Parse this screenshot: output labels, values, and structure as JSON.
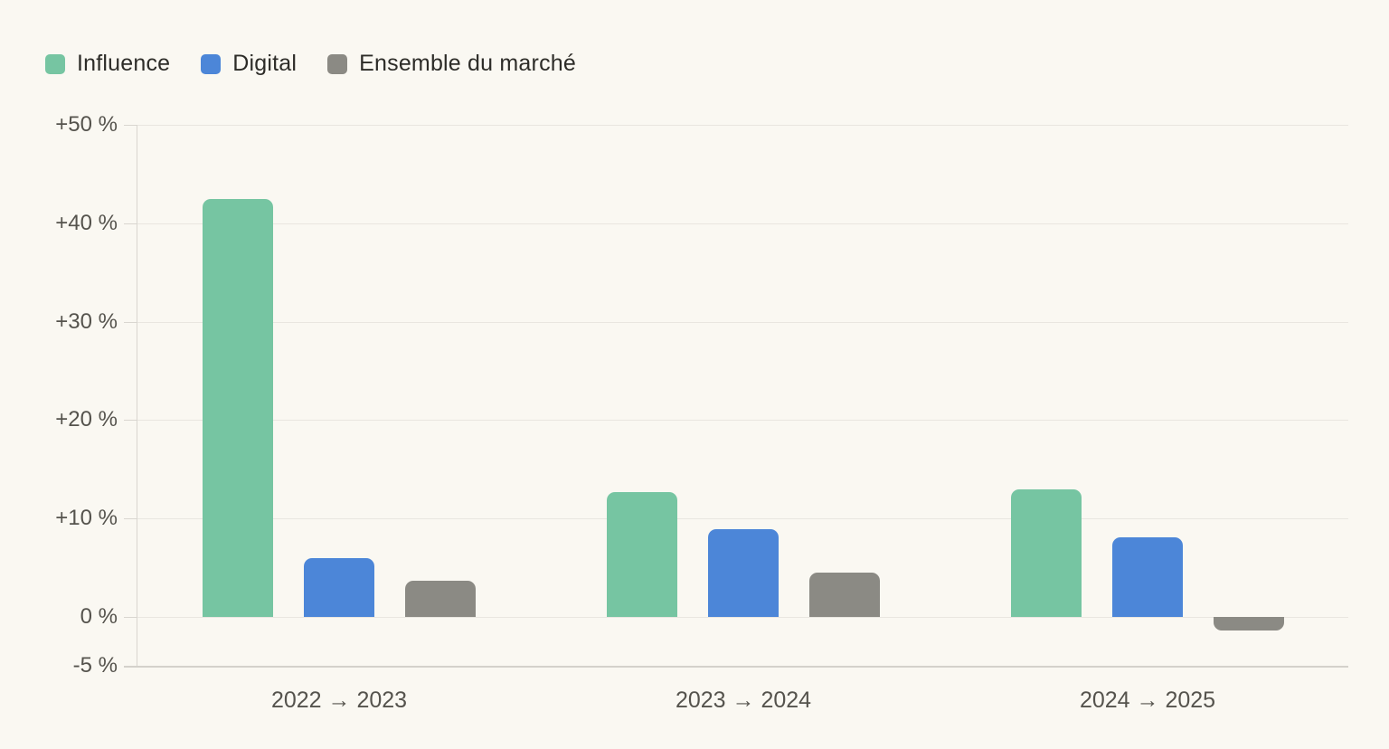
{
  "page": {
    "background_color": "#faf8f2",
    "text_color": "#2d2c28",
    "axis_text_color": "#55534d"
  },
  "legend": {
    "items": [
      {
        "label": "Influence",
        "color": "#76c5a2"
      },
      {
        "label": "Digital",
        "color": "#4c86d8"
      },
      {
        "label": "Ensemble du marché",
        "color": "#8b8a84"
      }
    ]
  },
  "chart_data": {
    "type": "bar",
    "title": "",
    "xlabel": "",
    "ylabel": "",
    "categories": [
      "2022 → 2023",
      "2023 → 2024",
      "2024 → 2025"
    ],
    "series": [
      {
        "name": "Influence",
        "color": "#76c5a2",
        "values": [
          42.5,
          12.7,
          13.0
        ]
      },
      {
        "name": "Digital",
        "color": "#4c86d8",
        "values": [
          6.0,
          8.9,
          8.1
        ]
      },
      {
        "name": "Ensemble du marché",
        "color": "#8b8a84",
        "values": [
          3.7,
          4.5,
          -1.4
        ]
      }
    ],
    "ylim": [
      -5,
      50
    ],
    "y_ticks": [
      {
        "value": 50,
        "label": "+50 %"
      },
      {
        "value": 40,
        "label": "+40 %"
      },
      {
        "value": 30,
        "label": "+30 %"
      },
      {
        "value": 20,
        "label": "+20 %"
      },
      {
        "value": 10,
        "label": "+10 %"
      },
      {
        "value": 0,
        "label": "0 %"
      },
      {
        "value": -5,
        "label": "-5 %"
      }
    ],
    "grid": true,
    "legend_position": "top-left",
    "unit": "%"
  }
}
